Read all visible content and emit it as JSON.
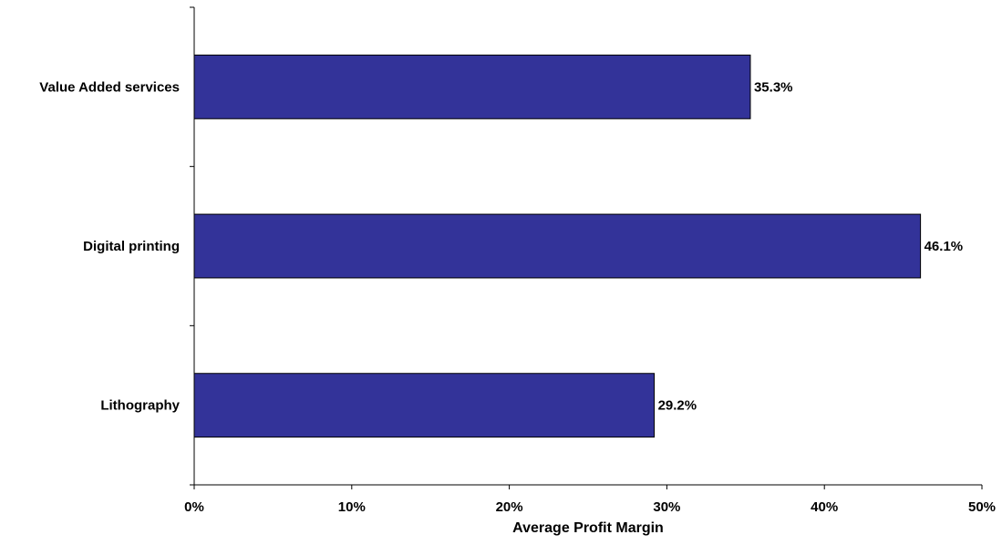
{
  "chart_data": {
    "type": "bar",
    "orientation": "horizontal",
    "title": "",
    "xlabel": "Average Profit Margin",
    "ylabel": "",
    "categories": [
      "Value Added services",
      "Digital printing",
      "Lithography"
    ],
    "values": [
      35.3,
      46.1,
      29.2
    ],
    "data_labels": [
      "35.3%",
      "46.1%",
      "29.2%"
    ],
    "xlim": [
      0,
      50
    ],
    "x_ticks": [
      0,
      10,
      20,
      30,
      40,
      50
    ],
    "x_tick_labels": [
      "0%",
      "10%",
      "20%",
      "30%",
      "40%",
      "50%"
    ],
    "grid": false,
    "legend": "none",
    "bar_color": "#333399",
    "bar_edge_color": "#000000"
  }
}
